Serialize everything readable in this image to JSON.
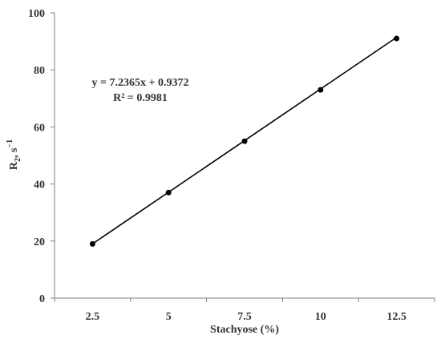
{
  "chart_data": {
    "type": "scatter",
    "xlabel": "Stachyose (%)",
    "ylabel_main": "R",
    "ylabel_sub": "2",
    "ylabel_rest": ", s",
    "ylabel_sup": "−1",
    "x_ticks": [
      "2.5",
      "5",
      "7.5",
      "10",
      "12.5"
    ],
    "y_ticks": [
      "0",
      "20",
      "40",
      "60",
      "80",
      "100"
    ],
    "xlim": [
      1.25,
      13.75
    ],
    "ylim": [
      0,
      100
    ],
    "grid": false,
    "series": [
      {
        "x": [
          2.5,
          5,
          7.5,
          10,
          12.5
        ],
        "y": [
          19,
          37,
          55,
          73,
          91
        ],
        "marker": "circle",
        "color": "#000000"
      }
    ],
    "trendline": {
      "slope": 7.2365,
      "intercept": 0.9372,
      "x_range": [
        2.5,
        12.5
      ],
      "color": "#000000"
    },
    "annotations": {
      "equation": "y = 7.2365x + 0.9372",
      "r_squared": "R² = 0.9981"
    }
  }
}
